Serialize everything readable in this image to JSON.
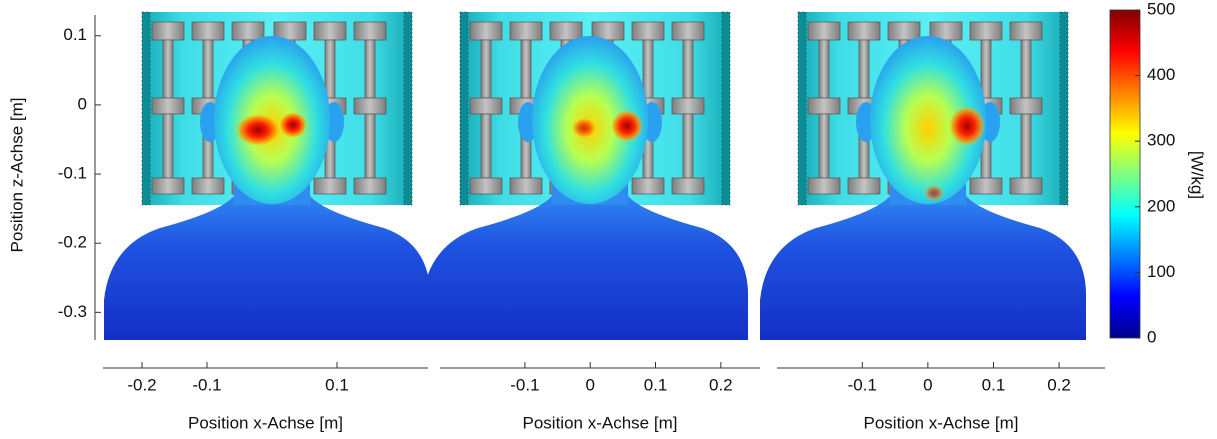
{
  "chart_data": [
    {
      "type": "heatmap",
      "ylabel": "Position z-Achse [m]",
      "ylim": [
        -0.34,
        0.13
      ],
      "yticks": [
        0.1,
        0,
        -0.1,
        -0.2,
        -0.3
      ],
      "xlabel": "Position x-Achse [m]",
      "xlim": [
        -0.26,
        0.24
      ],
      "xticks": [
        -0.2,
        -0.1,
        0.1
      ]
    },
    {
      "type": "heatmap",
      "xlabel": "Position x-Achse [m]",
      "xlim": [
        -0.23,
        0.26
      ],
      "xticks": [
        -0.1,
        0,
        0.1,
        0.2
      ]
    },
    {
      "type": "heatmap",
      "xlabel": "Position x-Achse [m]",
      "xlim": [
        -0.23,
        0.27
      ],
      "xticks": [
        -0.1,
        0,
        0.1,
        0.2
      ]
    }
  ],
  "colorbar": {
    "label": "[W/kg]",
    "lim": [
      0,
      500
    ],
    "ticks": [
      500,
      400,
      300,
      200,
      100,
      0
    ],
    "colors": [
      "#00008f",
      "#0000ff",
      "#0080ff",
      "#00ffff",
      "#80ff80",
      "#ffff00",
      "#ff8000",
      "#ff0000",
      "#800000"
    ]
  }
}
